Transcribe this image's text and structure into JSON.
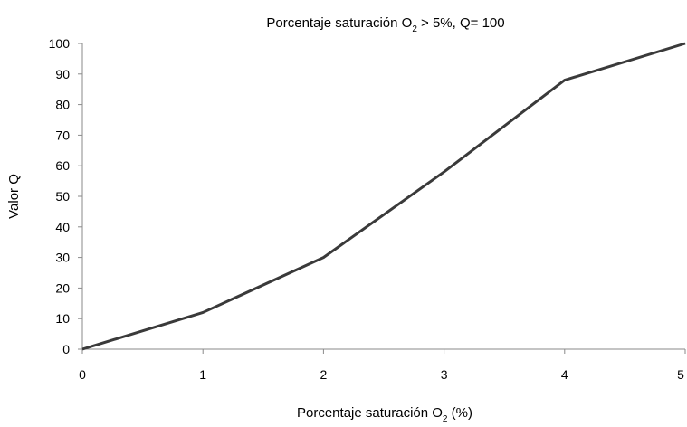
{
  "chart_data": {
    "type": "line",
    "title": {
      "prefix": "Porcentaje saturación O",
      "subscript": "2",
      "suffix": " > 5%, Q= 100"
    },
    "xlabel": {
      "prefix": "Porcentaje saturación O",
      "subscript": "2",
      "suffix": " (%)"
    },
    "ylabel": "Valor Q",
    "xlim": [
      0,
      5
    ],
    "ylim": [
      0,
      100
    ],
    "x_ticks": [
      0,
      1,
      2,
      3,
      4,
      5
    ],
    "y_ticks": [
      0,
      10,
      20,
      30,
      40,
      50,
      60,
      70,
      80,
      90,
      100
    ],
    "grid": false,
    "legend": "none",
    "line_color": "#3a3a3a",
    "series": [
      {
        "x": [
          0,
          1,
          2,
          3,
          4,
          5
        ],
        "values": [
          0,
          12,
          30,
          58,
          88,
          100
        ]
      }
    ]
  }
}
